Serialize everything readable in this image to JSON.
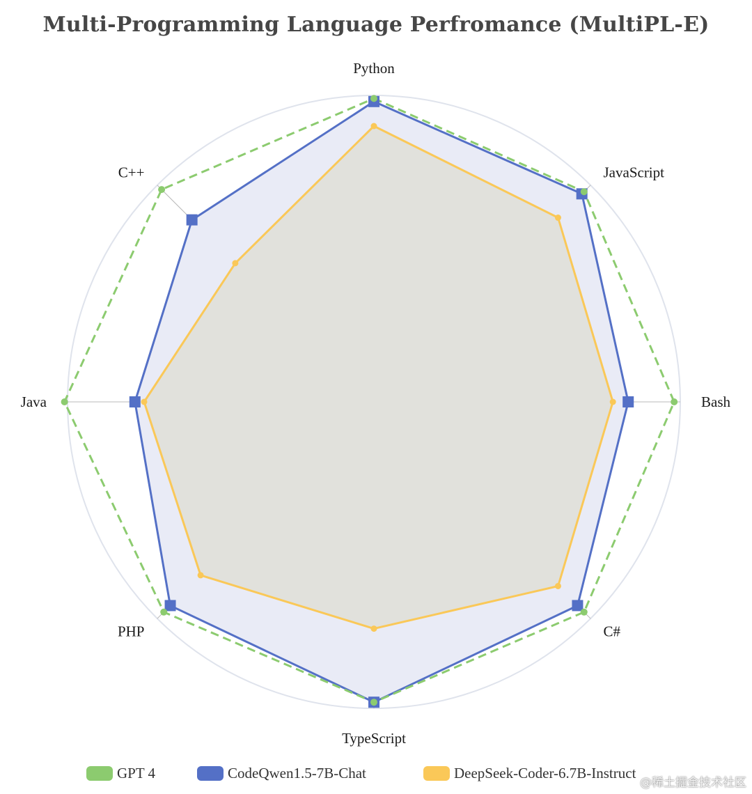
{
  "chart_data": {
    "type": "radar",
    "title": "Multi-Programming Language Perfromance (MultiPL-E)",
    "axes": [
      "Python",
      "JavaScript",
      "Bash",
      "C#",
      "TypeScript",
      "PHP",
      "Java",
      "C++"
    ],
    "rmax": 100,
    "ring_levels": [
      0.33,
      0.67,
      1.0
    ],
    "series": [
      {
        "name": "GPT 4",
        "values": [
          99,
          97,
          98,
          97,
          98,
          97,
          101,
          98
        ],
        "color": "#8ccb6f",
        "line_style": "dashed",
        "marker": "circle",
        "fill": false
      },
      {
        "name": "CodeQwen1.5-7B-Chat",
        "values": [
          98,
          96,
          83,
          94,
          98,
          94,
          78,
          84
        ],
        "color": "#5470c6",
        "line_style": "solid",
        "marker": "square",
        "fill": true,
        "fill_color": "#e9ebf6"
      },
      {
        "name": "DeepSeek-Coder-6.7B-Instruct",
        "values": [
          90,
          85,
          78,
          85,
          74,
          80,
          75,
          64
        ],
        "color": "#fac858",
        "line_style": "solid",
        "marker": "circle",
        "fill": true,
        "fill_color": "#dfdfd7"
      }
    ],
    "legend_position": "bottom"
  },
  "watermark": "@稀土掘金技术社区"
}
